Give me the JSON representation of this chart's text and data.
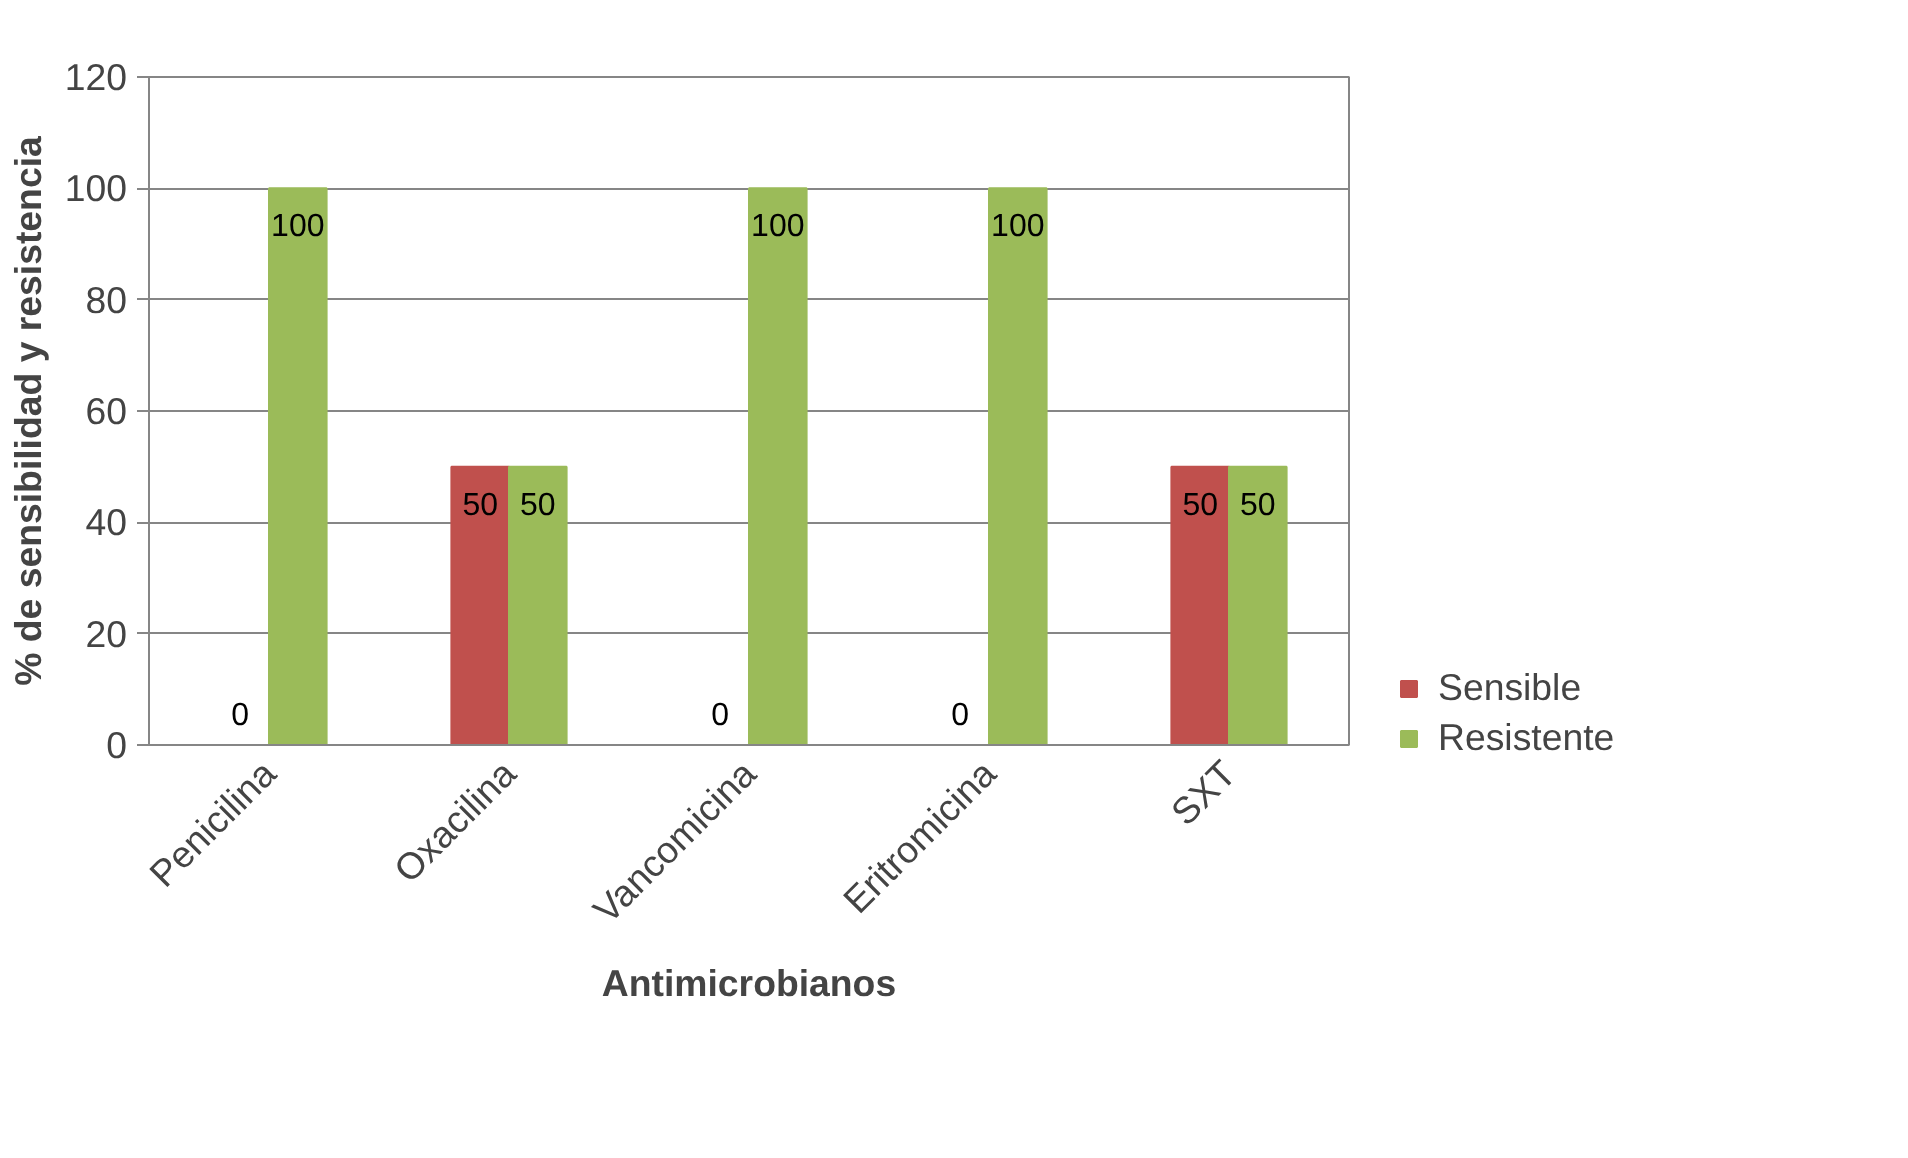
{
  "chart_data": {
    "type": "bar",
    "xlabel": "Antimicrobianos",
    "ylabel": "% de sensibilidad y resistencia",
    "categories": [
      "Penicilina",
      "Oxacilina",
      "Vancomicina",
      "Eritromicina",
      "SXT"
    ],
    "series": [
      {
        "name": "Sensible",
        "color": "#c0504d",
        "values": [
          0,
          50,
          0,
          0,
          50
        ]
      },
      {
        "name": "Resistente",
        "color": "#9bbb59",
        "values": [
          100,
          50,
          100,
          100,
          50
        ]
      }
    ],
    "ylim": [
      0,
      120
    ],
    "yticks": [
      0,
      20,
      40,
      60,
      80,
      100,
      120
    ],
    "grid": "y",
    "legend": "right",
    "data_labels": true
  }
}
